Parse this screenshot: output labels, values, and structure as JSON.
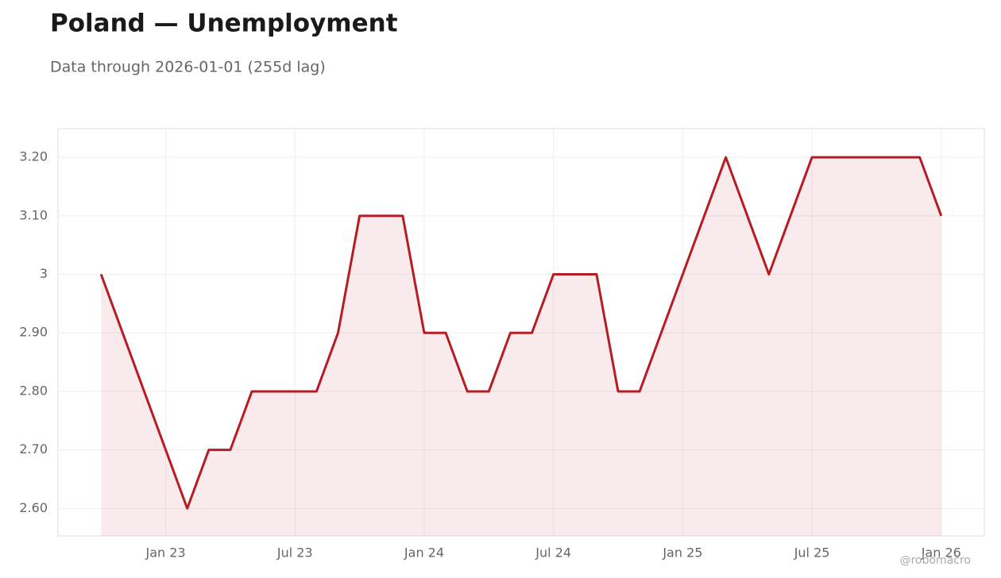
{
  "chart_data": {
    "type": "line",
    "title": "Poland — Unemployment",
    "subtitle": "Data through 2026-01-01 (255d lag)",
    "watermark": "@robomacro",
    "x": [
      "2022-10",
      "2022-11",
      "2022-12",
      "2023-01",
      "2023-02",
      "2023-03",
      "2023-04",
      "2023-05",
      "2023-06",
      "2023-07",
      "2023-08",
      "2023-09",
      "2023-10",
      "2023-11",
      "2023-12",
      "2024-01",
      "2024-02",
      "2024-03",
      "2024-04",
      "2024-05",
      "2024-06",
      "2024-07",
      "2024-08",
      "2024-09",
      "2024-10",
      "2024-11",
      "2024-12",
      "2025-01",
      "2025-02",
      "2025-03",
      "2025-04",
      "2025-05",
      "2025-06",
      "2025-07",
      "2025-08",
      "2025-09",
      "2025-10",
      "2025-11",
      "2025-12",
      "2026-01"
    ],
    "series": [
      {
        "color": "#b71c24",
        "values": [
          3.0,
          2.9,
          2.8,
          2.7,
          2.6,
          2.7,
          2.7,
          2.8,
          2.8,
          2.8,
          2.8,
          2.9,
          3.1,
          3.1,
          3.1,
          2.9,
          2.9,
          2.8,
          2.8,
          2.9,
          2.9,
          3.0,
          3.0,
          3.0,
          2.8,
          2.8,
          2.9,
          3.0,
          3.1,
          3.2,
          3.1,
          3.0,
          3.1,
          3.2,
          3.2,
          3.2,
          3.2,
          3.2,
          3.2,
          3.1
        ]
      }
    ],
    "xlim": [
      "2022-08",
      "2026-03"
    ],
    "xticks": [
      {
        "value": "2023-01",
        "label": "Jan 23"
      },
      {
        "value": "2023-07",
        "label": "Jul 23"
      },
      {
        "value": "2024-01",
        "label": "Jan 24"
      },
      {
        "value": "2024-07",
        "label": "Jul 24"
      },
      {
        "value": "2025-01",
        "label": "Jan 25"
      },
      {
        "value": "2025-07",
        "label": "Jul 25"
      },
      {
        "value": "2026-01",
        "label": "Jan 26"
      }
    ],
    "ylim": [
      2.553,
      3.249
    ],
    "yticks": [
      {
        "value": 2.6,
        "label": "2.60"
      },
      {
        "value": 2.7,
        "label": "2.70"
      },
      {
        "value": 2.8,
        "label": "2.80"
      },
      {
        "value": 2.9,
        "label": "2.90"
      },
      3,
      {
        "value": 3.1,
        "label": "3.10"
      },
      {
        "value": 3.2,
        "label": "3.20"
      }
    ],
    "grid": true
  }
}
